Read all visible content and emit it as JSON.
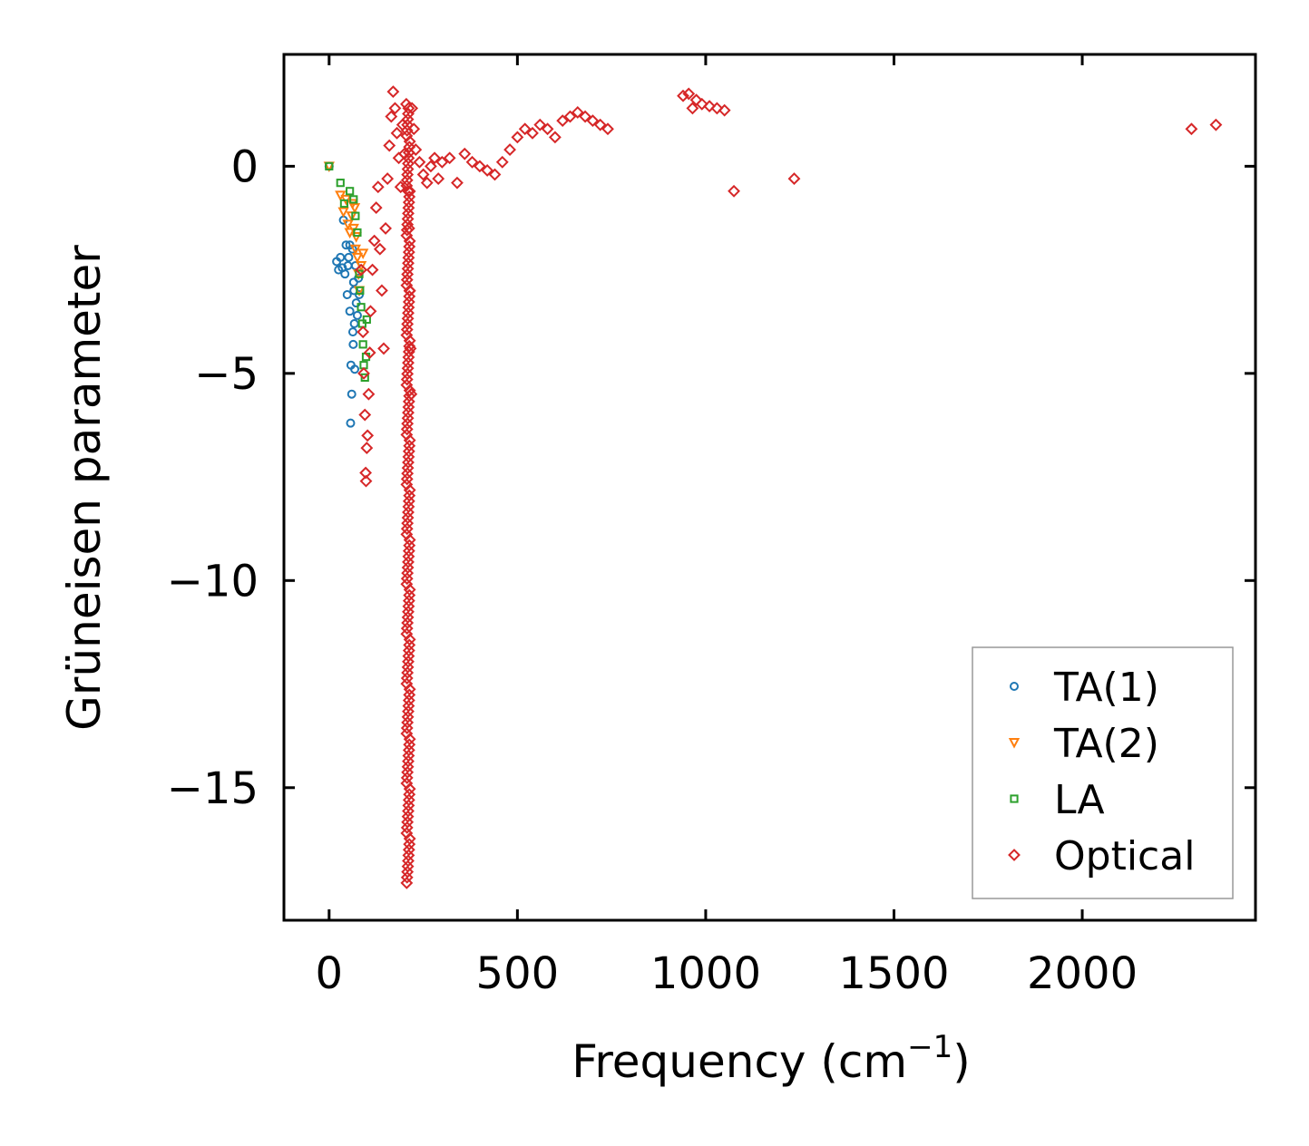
{
  "chart_data": {
    "type": "scatter",
    "title": "",
    "xlabel": "Frequency (cm",
    "xlabel_sup": "−1",
    "xlabel_suffix": ")",
    "ylabel": "Grüneisen parameter",
    "xlim": [
      -120,
      2460
    ],
    "ylim": [
      -18.2,
      2.7
    ],
    "xticks": [
      0,
      500,
      1000,
      1500,
      2000
    ],
    "xtick_labels": [
      "0",
      "500",
      "1000",
      "1500",
      "2000"
    ],
    "yticks": [
      0,
      -5,
      -10,
      -15
    ],
    "ytick_labels": [
      "0",
      "−5",
      "−10",
      "−15"
    ],
    "grid": false,
    "legend_position": "bottom-right",
    "series": [
      {
        "name": "TA(1)",
        "marker": "circle",
        "color": "#1f77b4",
        "points": [
          [
            0,
            0
          ],
          [
            20,
            -2.3
          ],
          [
            25,
            -2.5
          ],
          [
            30,
            -2.2
          ],
          [
            35,
            -2.45
          ],
          [
            38,
            -1.3
          ],
          [
            42,
            -2.6
          ],
          [
            45,
            -1.9
          ],
          [
            48,
            -3.1
          ],
          [
            50,
            -2.4
          ],
          [
            52,
            -2.2
          ],
          [
            55,
            -1.9
          ],
          [
            55,
            -3.5
          ],
          [
            57,
            -6.2
          ],
          [
            58,
            -4.8
          ],
          [
            60,
            -5.5
          ],
          [
            62,
            -2.0
          ],
          [
            63,
            -4.0
          ],
          [
            64,
            -4.3
          ],
          [
            65,
            -2.8
          ],
          [
            66,
            -3.0
          ],
          [
            67,
            -3.8
          ],
          [
            68,
            -4.9
          ],
          [
            70,
            -2.4
          ],
          [
            72,
            -3.3
          ],
          [
            75,
            -3.6
          ],
          [
            78,
            -2.7
          ],
          [
            80,
            -3.1
          ]
        ]
      },
      {
        "name": "TA(2)",
        "marker": "triangle-down",
        "color": "#ff7f0e",
        "points": [
          [
            0,
            0
          ],
          [
            30,
            -0.7
          ],
          [
            38,
            -1.1
          ],
          [
            45,
            -0.8
          ],
          [
            50,
            -1.4
          ],
          [
            55,
            -1.6
          ],
          [
            60,
            -1.2
          ],
          [
            62,
            -0.9
          ],
          [
            65,
            -1.5
          ],
          [
            68,
            -1.0
          ],
          [
            70,
            -2.0
          ],
          [
            72,
            -1.7
          ],
          [
            75,
            -2.2
          ],
          [
            78,
            -2.6
          ],
          [
            80,
            -3.0
          ],
          [
            85,
            -2.4
          ],
          [
            90,
            -2.1
          ]
        ]
      },
      {
        "name": "LA",
        "marker": "square",
        "color": "#2ca02c",
        "points": [
          [
            0,
            0
          ],
          [
            30,
            -0.4
          ],
          [
            40,
            -0.9
          ],
          [
            55,
            -0.6
          ],
          [
            65,
            -0.8
          ],
          [
            70,
            -1.2
          ],
          [
            75,
            -1.6
          ],
          [
            80,
            -2.6
          ],
          [
            82,
            -3.0
          ],
          [
            85,
            -3.4
          ],
          [
            88,
            -3.8
          ],
          [
            90,
            -4.3
          ],
          [
            92,
            -4.8
          ],
          [
            95,
            -5.1
          ],
          [
            98,
            -4.6
          ],
          [
            100,
            -3.7
          ]
        ]
      },
      {
        "name": "Optical",
        "marker": "diamond",
        "color": "#d62728",
        "points": [
          [
            85,
            -2.5
          ],
          [
            90,
            -4.0
          ],
          [
            92,
            -5.0
          ],
          [
            95,
            -6.0
          ],
          [
            97,
            -7.4
          ],
          [
            98,
            -7.6
          ],
          [
            100,
            -6.8
          ],
          [
            102,
            -6.5
          ],
          [
            105,
            -5.5
          ],
          [
            108,
            -4.5
          ],
          [
            110,
            -3.5
          ],
          [
            115,
            -2.5
          ],
          [
            120,
            -1.8
          ],
          [
            125,
            -1.0
          ],
          [
            130,
            -0.5
          ],
          [
            135,
            -2.0
          ],
          [
            140,
            -3.0
          ],
          [
            145,
            -4.4
          ],
          [
            150,
            -1.5
          ],
          [
            155,
            -0.3
          ],
          [
            160,
            0.5
          ],
          [
            165,
            1.2
          ],
          [
            170,
            1.8
          ],
          [
            175,
            1.4
          ],
          [
            180,
            0.8
          ],
          [
            185,
            0.2
          ],
          [
            190,
            -0.5
          ],
          [
            195,
            1.0
          ],
          [
            200,
            0.3
          ],
          [
            205,
            1.5
          ],
          [
            210,
            -0.6
          ],
          [
            212,
            -1.5
          ],
          [
            214,
            -3.0
          ],
          [
            216,
            -4.4
          ],
          [
            218,
            -5.5
          ],
          [
            220,
            1.4
          ],
          [
            225,
            0.9
          ],
          [
            230,
            0.4
          ],
          [
            240,
            0.1
          ],
          [
            250,
            -0.2
          ],
          [
            260,
            -0.4
          ],
          [
            270,
            0.0
          ],
          [
            280,
            0.2
          ],
          [
            290,
            -0.3
          ],
          [
            300,
            0.1
          ],
          [
            320,
            0.2
          ],
          [
            340,
            -0.4
          ],
          [
            360,
            0.3
          ],
          [
            380,
            0.1
          ],
          [
            400,
            0.0
          ],
          [
            420,
            -0.1
          ],
          [
            440,
            -0.2
          ],
          [
            460,
            0.1
          ],
          [
            480,
            0.4
          ],
          [
            500,
            0.7
          ],
          [
            520,
            0.9
          ],
          [
            540,
            0.8
          ],
          [
            560,
            1.0
          ],
          [
            580,
            0.9
          ],
          [
            600,
            0.7
          ],
          [
            620,
            1.1
          ],
          [
            640,
            1.2
          ],
          [
            660,
            1.3
          ],
          [
            680,
            1.2
          ],
          [
            700,
            1.1
          ],
          [
            720,
            1.0
          ],
          [
            740,
            0.9
          ],
          [
            940,
            1.7
          ],
          [
            955,
            1.75
          ],
          [
            965,
            1.4
          ],
          [
            975,
            1.6
          ],
          [
            990,
            1.5
          ],
          [
            1010,
            1.45
          ],
          [
            1030,
            1.4
          ],
          [
            1050,
            1.35
          ],
          [
            1075,
            -0.6
          ],
          [
            1235,
            -0.3
          ],
          [
            2290,
            0.9
          ],
          [
            2355,
            1.0
          ]
        ],
        "column_near_210": {
          "x": 210,
          "y_from": -17.3,
          "y_to": 1.4
        }
      }
    ]
  }
}
